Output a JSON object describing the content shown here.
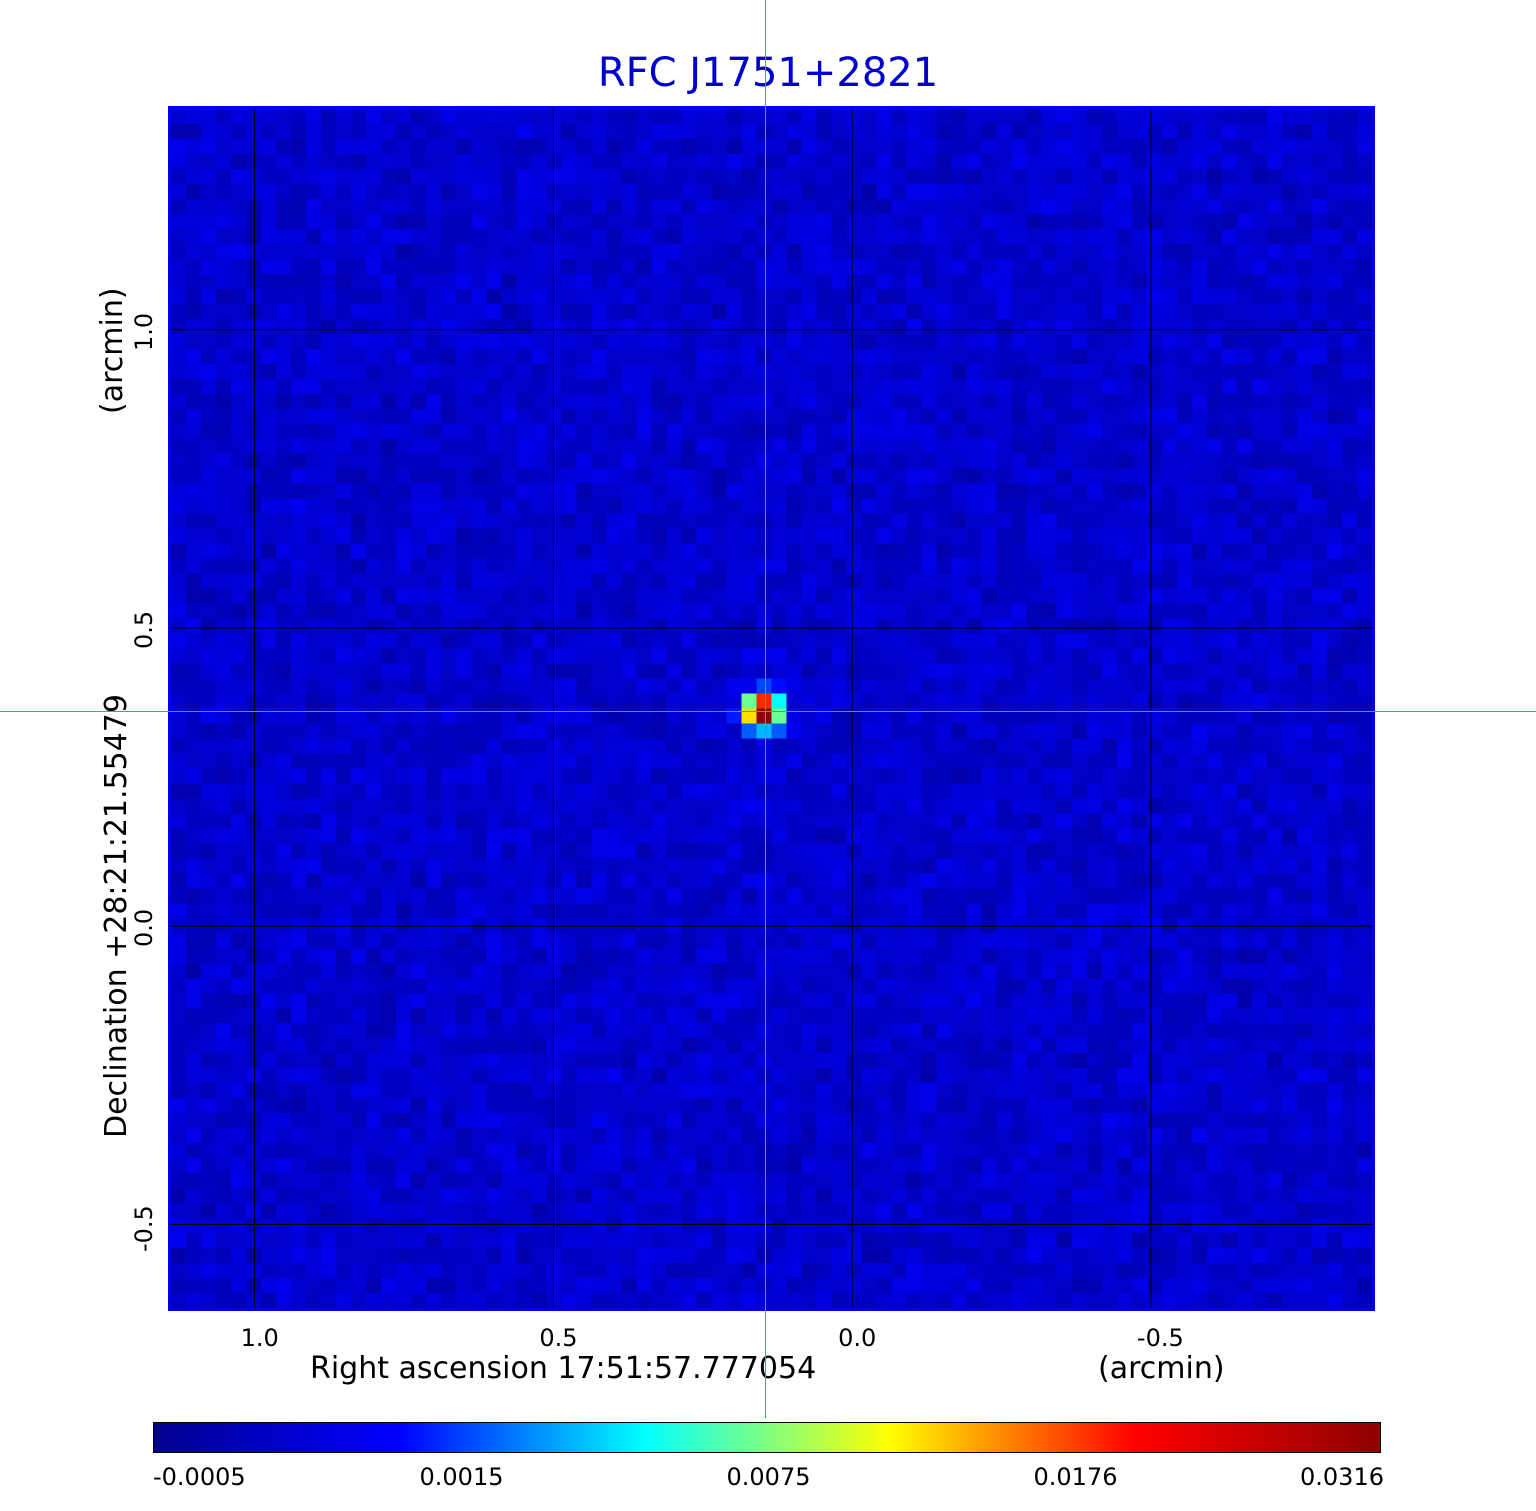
{
  "chart_data": {
    "type": "heatmap",
    "title": "RFC J1751+2821",
    "xlabel": "Right ascension  17:51:57.777054",
    "xunit": "(arcmin)",
    "ylabel": "Declination  +28:21:21.55479",
    "yunit": "(arcmin)",
    "xlim": [
      1.14,
      -0.87
    ],
    "ylim": [
      -0.64,
      1.37
    ],
    "x_ticks": [
      1.0,
      0.5,
      0.0,
      -0.5
    ],
    "x_tick_labels": [
      "1.0",
      "0.5",
      "0.0",
      "-0.5"
    ],
    "y_ticks": [
      -0.5,
      0.0,
      0.5,
      1.0
    ],
    "y_tick_labels": [
      "-0.5",
      "0.0",
      "0.5",
      "1.0"
    ],
    "grid": true,
    "source_peak": {
      "x": 0.15,
      "y": 0.36,
      "value": 0.0316
    },
    "crosshair": {
      "x": 0.145,
      "y": 0.36
    },
    "colormap": "jet",
    "colorbar_ticks": [
      -0.0005,
      0.0015,
      0.0075,
      0.0176,
      0.0316
    ],
    "colorbar_tick_labels": [
      "-0.0005",
      "0.0015",
      "0.0075",
      "0.0176",
      "0.0316"
    ],
    "colorbar_stops": [
      "#00008f",
      "#0000ff",
      "#00ffff",
      "#ffff00",
      "#ff0000",
      "#8f0000"
    ],
    "crosshair_color": "#00dd00",
    "frame_color": "#0000ee"
  }
}
